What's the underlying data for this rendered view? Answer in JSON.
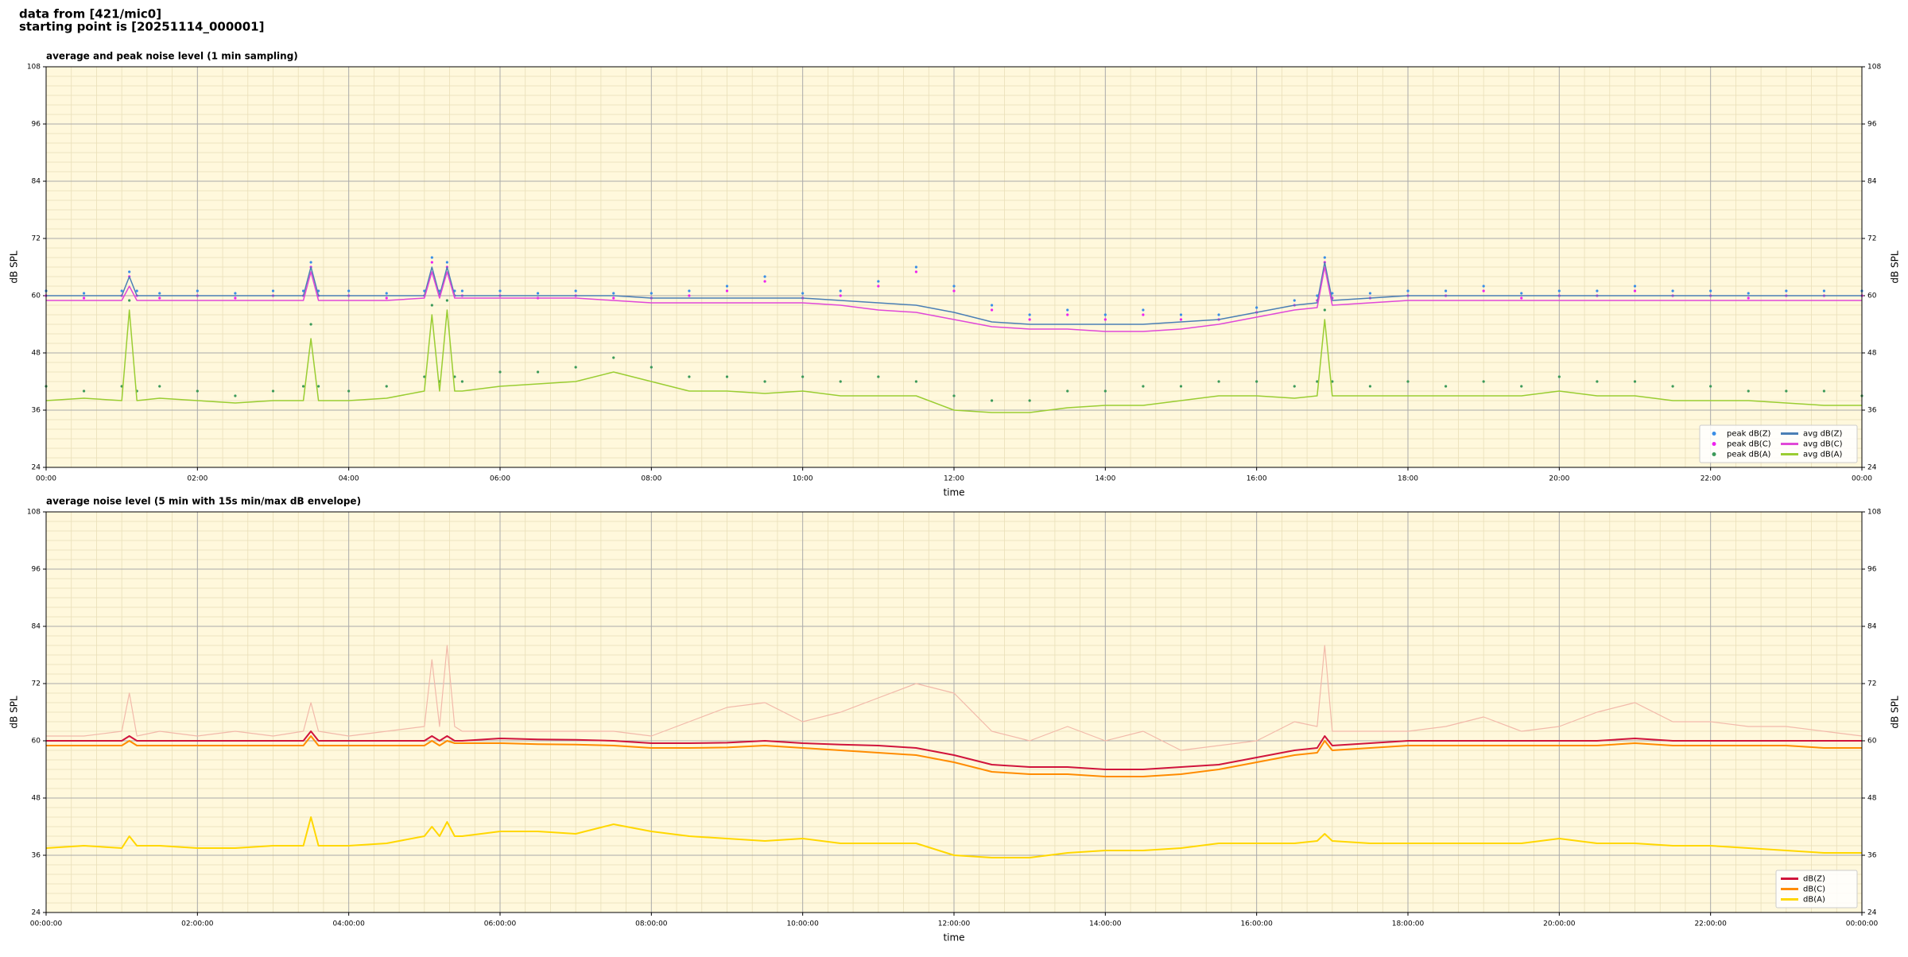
{
  "header": {
    "source": "data from [421/mic0]",
    "start": "starting point is [20251114_000001]"
  },
  "chart_data": [
    {
      "type": "line",
      "title": "average and peak noise level (1 min sampling)",
      "xlabel": "time",
      "ylabel": "dB SPL",
      "xlim": [
        0,
        24
      ],
      "ylim": [
        24,
        108
      ],
      "yticks": [
        24,
        36,
        48,
        60,
        72,
        84,
        96,
        108
      ],
      "xticks": [
        {
          "value": 0,
          "label": "00:00"
        },
        {
          "value": 2,
          "label": "02:00"
        },
        {
          "value": 4,
          "label": "04:00"
        },
        {
          "value": 6,
          "label": "06:00"
        },
        {
          "value": 8,
          "label": "08:00"
        },
        {
          "value": 10,
          "label": "10:00"
        },
        {
          "value": 12,
          "label": "12:00"
        },
        {
          "value": 14,
          "label": "14:00"
        },
        {
          "value": 16,
          "label": "16:00"
        },
        {
          "value": 18,
          "label": "18:00"
        },
        {
          "value": 20,
          "label": "20:00"
        },
        {
          "value": 22,
          "label": "22:00"
        },
        {
          "value": 24,
          "label": "00:00"
        }
      ],
      "grid": true,
      "minor_grid": true,
      "legend": "lower right",
      "legend_columns": 2,
      "x": [
        0,
        0.5,
        1,
        1.1,
        1.2,
        1.5,
        2,
        2.5,
        3,
        3.4,
        3.5,
        3.6,
        4,
        4.5,
        5,
        5.1,
        5.2,
        5.3,
        5.4,
        5.5,
        6,
        6.5,
        7,
        7.5,
        8,
        8.5,
        9,
        9.5,
        10,
        10.5,
        11,
        11.5,
        12,
        12.5,
        13,
        13.5,
        14,
        14.5,
        15,
        15.5,
        16,
        16.5,
        16.8,
        16.9,
        17,
        17.5,
        18,
        18.5,
        19,
        19.5,
        20,
        20.5,
        21,
        21.5,
        22,
        22.5,
        23,
        23.5,
        24
      ],
      "series": [
        {
          "name": "peak dB(Z)",
          "style": "scatter",
          "color": "#3a8ee6",
          "values": [
            61,
            60.5,
            61,
            65,
            61,
            60.5,
            61,
            60.5,
            61,
            61,
            67,
            61,
            61,
            60.5,
            61,
            68,
            61,
            67,
            61,
            61,
            61,
            60.5,
            61,
            60.5,
            60.5,
            61,
            62,
            64,
            60.5,
            61,
            63,
            66,
            62,
            58,
            56,
            57,
            56,
            57,
            56,
            56,
            57.5,
            59,
            60,
            68,
            60.5,
            60.5,
            61,
            61,
            62,
            60.5,
            61,
            61,
            62,
            61,
            61,
            60.5,
            61,
            61,
            61
          ]
        },
        {
          "name": "peak dB(C)",
          "style": "scatter",
          "color": "#ee22ee",
          "values": [
            60,
            59.5,
            60,
            64,
            60,
            59.5,
            60,
            59.5,
            60,
            60,
            66,
            60,
            60,
            59.5,
            60,
            67,
            60,
            66,
            60,
            60,
            60,
            59.5,
            60,
            59.5,
            59.5,
            60,
            61,
            63,
            59.5,
            60,
            62,
            65,
            61,
            57,
            55,
            56,
            55,
            56,
            55,
            55,
            56.5,
            58,
            59,
            67,
            59.5,
            59.5,
            60,
            60,
            61,
            59.5,
            60,
            60,
            61,
            60,
            60,
            59.5,
            60,
            60,
            60
          ]
        },
        {
          "name": "peak dB(A)",
          "style": "scatter",
          "color": "#3c9a5a",
          "values": [
            41,
            40,
            41,
            59,
            40,
            41,
            40,
            39,
            40,
            41,
            54,
            41,
            40,
            41,
            43,
            58,
            42,
            59,
            43,
            42,
            44,
            44,
            45,
            47,
            45,
            43,
            43,
            42,
            43,
            42,
            43,
            42,
            39,
            38,
            38,
            40,
            40,
            41,
            41,
            42,
            42,
            41,
            42,
            57,
            42,
            41,
            42,
            41,
            42,
            41,
            43,
            42,
            42,
            41,
            41,
            40,
            40,
            40,
            39
          ]
        },
        {
          "name": "avg dB(Z)",
          "style": "line",
          "color": "#4a7fb5",
          "values": [
            60,
            60,
            60,
            64,
            60,
            60,
            60,
            60,
            60,
            60,
            66,
            60,
            60,
            60,
            60,
            66,
            60,
            66,
            60,
            60,
            60,
            60,
            60,
            60,
            59.5,
            59.5,
            59.5,
            59.5,
            59.5,
            59,
            58.5,
            58,
            56.5,
            54.5,
            54,
            54,
            54,
            54,
            54.5,
            55,
            56.5,
            58,
            58.5,
            67,
            59,
            59.5,
            60,
            60,
            60,
            60,
            60,
            60,
            60,
            60,
            60,
            60,
            60,
            60,
            60
          ]
        },
        {
          "name": "avg dB(C)",
          "style": "line",
          "color": "#e048d8",
          "values": [
            59,
            59,
            59,
            62,
            59,
            59,
            59,
            59,
            59,
            59,
            65,
            59,
            59,
            59,
            59.5,
            65,
            59.5,
            65,
            59.5,
            59.5,
            59.5,
            59.5,
            59.5,
            59,
            58.5,
            58.5,
            58.5,
            58.5,
            58.5,
            58,
            57,
            56.5,
            55,
            53.5,
            53,
            53,
            52.5,
            52.5,
            53,
            54,
            55.5,
            57,
            57.5,
            66,
            58,
            58.5,
            59,
            59,
            59,
            59,
            59,
            59,
            59,
            59,
            59,
            59,
            59,
            59,
            59
          ]
        },
        {
          "name": "avg dB(A)",
          "style": "line",
          "color": "#9acd32",
          "values": [
            38,
            38.5,
            38,
            57,
            38,
            38.5,
            38,
            37.5,
            38,
            38,
            51,
            38,
            38,
            38.5,
            40,
            56,
            40,
            57,
            40,
            40,
            41,
            41.5,
            42,
            44,
            42,
            40,
            40,
            39.5,
            40,
            39,
            39,
            39,
            36,
            35.5,
            35.5,
            36.5,
            37,
            37,
            38,
            39,
            39,
            38.5,
            39,
            55,
            39,
            39,
            39,
            39,
            39,
            39,
            40,
            39,
            39,
            38,
            38,
            38,
            37.5,
            37,
            37
          ]
        }
      ]
    },
    {
      "type": "line",
      "title": "average noise level (5 min with 15s min/max dB envelope)",
      "xlabel": "time",
      "ylabel": "dB SPL",
      "xlim": [
        0,
        24
      ],
      "ylim": [
        24,
        108
      ],
      "yticks": [
        24,
        36,
        48,
        60,
        72,
        84,
        96,
        108
      ],
      "xticks": [
        {
          "value": 0,
          "label": "00:00:00"
        },
        {
          "value": 2,
          "label": "02:00:00"
        },
        {
          "value": 4,
          "label": "04:00:00"
        },
        {
          "value": 6,
          "label": "06:00:00"
        },
        {
          "value": 8,
          "label": "08:00:00"
        },
        {
          "value": 10,
          "label": "10:00:00"
        },
        {
          "value": 12,
          "label": "12:00:00"
        },
        {
          "value": 14,
          "label": "14:00:00"
        },
        {
          "value": 16,
          "label": "16:00:00"
        },
        {
          "value": 18,
          "label": "18:00:00"
        },
        {
          "value": 20,
          "label": "20:00:00"
        },
        {
          "value": 22,
          "label": "22:00:00"
        },
        {
          "value": 24,
          "label": "00:00:00"
        }
      ],
      "grid": true,
      "minor_grid": true,
      "legend": "lower right",
      "legend_columns": 1,
      "x": [
        0,
        0.5,
        1,
        1.1,
        1.2,
        1.5,
        2,
        2.5,
        3,
        3.4,
        3.5,
        3.6,
        4,
        4.5,
        5,
        5.1,
        5.2,
        5.3,
        5.4,
        5.5,
        6,
        6.5,
        7,
        7.5,
        8,
        8.5,
        9,
        9.5,
        10,
        10.5,
        11,
        11.5,
        12,
        12.5,
        13,
        13.5,
        14,
        14.5,
        15,
        15.5,
        16,
        16.5,
        16.8,
        16.9,
        17,
        17.5,
        18,
        18.5,
        19,
        19.5,
        20,
        20.5,
        21,
        21.5,
        22,
        22.5,
        23,
        23.5,
        24
      ],
      "envelope": {
        "color": "#f2b9aa",
        "values": [
          61,
          61,
          62,
          70,
          61,
          62,
          61,
          62,
          61,
          62,
          68,
          62,
          61,
          62,
          63,
          77,
          63,
          80,
          63,
          62,
          62,
          62,
          62,
          62,
          61,
          64,
          67,
          68,
          64,
          66,
          69,
          72,
          70,
          62,
          60,
          63,
          60,
          62,
          58,
          59,
          60,
          64,
          63,
          80,
          62,
          62,
          62,
          63,
          65,
          62,
          63,
          66,
          68,
          64,
          64,
          63,
          63,
          62,
          61
        ]
      },
      "series": [
        {
          "name": "dB(Z)",
          "style": "line",
          "color": "#d0143c",
          "values": [
            60,
            60,
            60,
            61,
            60,
            60,
            60,
            60,
            60,
            60,
            62,
            60,
            60,
            60,
            60,
            61,
            60,
            61,
            60,
            60,
            60.5,
            60.3,
            60.2,
            60,
            59.5,
            59.5,
            59.6,
            60,
            59.5,
            59.2,
            59,
            58.5,
            57,
            55,
            54.5,
            54.5,
            54,
            54,
            54.5,
            55,
            56.5,
            58,
            58.5,
            61,
            59,
            59.5,
            60,
            60,
            60,
            60,
            60,
            60,
            60.5,
            60,
            60,
            60,
            60,
            60,
            60
          ]
        },
        {
          "name": "dB(C)",
          "style": "line",
          "color": "#ff8c00",
          "values": [
            59,
            59,
            59,
            60,
            59,
            59,
            59,
            59,
            59,
            59,
            61,
            59,
            59,
            59,
            59,
            60,
            59,
            60,
            59.5,
            59.5,
            59.5,
            59.3,
            59.2,
            59,
            58.5,
            58.5,
            58.6,
            59,
            58.5,
            58,
            57.5,
            57,
            55.5,
            53.5,
            53,
            53,
            52.5,
            52.5,
            53,
            54,
            55.5,
            57,
            57.5,
            60,
            58,
            58.5,
            59,
            59,
            59,
            59,
            59,
            59,
            59.5,
            59,
            59,
            59,
            59,
            58.5,
            58.5
          ]
        },
        {
          "name": "dB(A)",
          "style": "line",
          "color": "#ffd700",
          "values": [
            37.5,
            38,
            37.5,
            40,
            38,
            38,
            37.5,
            37.5,
            38,
            38,
            44,
            38,
            38,
            38.5,
            40,
            42,
            40,
            43,
            40,
            40,
            41,
            41,
            40.5,
            42.5,
            41,
            40,
            39.5,
            39,
            39.5,
            38.5,
            38.5,
            38.5,
            36,
            35.5,
            35.5,
            36.5,
            37,
            37,
            37.5,
            38.5,
            38.5,
            38.5,
            39,
            40.5,
            39,
            38.5,
            38.5,
            38.5,
            38.5,
            38.5,
            39.5,
            38.5,
            38.5,
            38,
            38,
            37.5,
            37,
            36.5,
            36.5
          ]
        }
      ]
    }
  ]
}
